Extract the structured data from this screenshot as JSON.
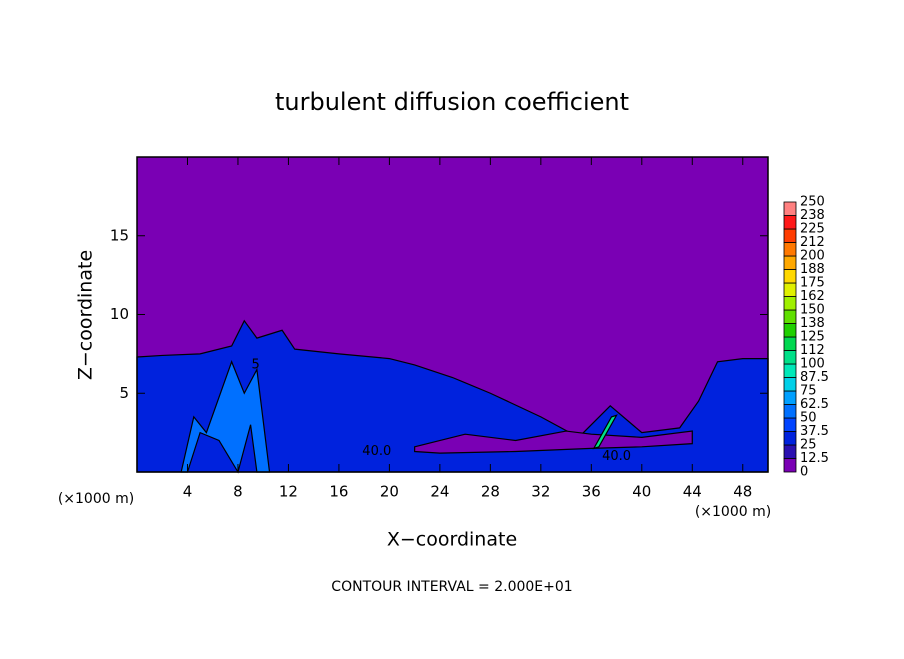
{
  "chart_data": {
    "type": "contour",
    "title": "turbulent diffusion coefficient",
    "x_label": "X−coordinate",
    "y_label": "Z−coordinate",
    "x_unit_left": "(×1000 m)",
    "x_unit_right": "(×1000 m)",
    "footer": "CONTOUR INTERVAL = 2.000E+01",
    "xlim": [
      0,
      50
    ],
    "ylim": [
      0,
      20
    ],
    "xticks": [
      4,
      8,
      12,
      16,
      20,
      24,
      28,
      32,
      36,
      40,
      44,
      48
    ],
    "yticks": [
      5,
      10,
      15
    ],
    "levels": [
      0,
      12.5,
      25,
      37.5,
      50,
      62.5,
      75,
      87.5,
      100,
      {
        "value": 112.5,
        "label": "112"
      },
      125,
      {
        "value": 137.5,
        "label": "138"
      },
      150,
      {
        "value": 162.5,
        "label": "162"
      },
      175,
      {
        "value": 187.5,
        "label": "188"
      },
      200,
      {
        "value": 212.5,
        "label": "212"
      },
      225,
      {
        "value": 237.5,
        "label": "238"
      },
      250
    ],
    "colors": [
      "#7a00b4",
      "#2a10b0",
      "#0022dd",
      "#0044ff",
      "#0070ff",
      "#00a0ff",
      "#00d0e8",
      "#00e8b8",
      "#00e088",
      "#00d850",
      "#20d000",
      "#60e000",
      "#a0f000",
      "#e0f000",
      "#ffd800",
      "#ffa800",
      "#ff7800",
      "#ff3c00",
      "#ff1818",
      "#ff8080"
    ],
    "regions": [
      {
        "value": 30,
        "x": [
          0,
          2,
          5,
          7.5,
          8.5,
          9.5,
          11.5,
          12.5,
          16,
          20,
          22,
          25,
          28,
          32,
          35,
          37.5,
          40,
          43,
          44.5,
          46,
          48,
          50,
          50,
          0
        ],
        "z": [
          7.3,
          7.4,
          7.5,
          8.0,
          9.6,
          8.5,
          9.0,
          7.8,
          7.5,
          7.2,
          6.8,
          6.0,
          5.0,
          3.5,
          2.2,
          4.2,
          2.5,
          2.8,
          4.5,
          7.0,
          7.2,
          7.2,
          0,
          0
        ]
      },
      {
        "value": 60,
        "x": [
          3.5,
          4.5,
          5.5,
          7.5,
          8.5,
          9.5,
          10.5,
          9.5,
          9.0,
          8.0,
          6.5,
          5.0,
          4.0
        ],
        "z": [
          0,
          3.5,
          2.5,
          7.0,
          5.0,
          6.5,
          0,
          0,
          3.0,
          0,
          2.0,
          2.5,
          0
        ]
      },
      {
        "value": 10,
        "x": [
          22,
          26,
          30,
          34,
          36,
          40,
          44,
          44,
          40,
          36,
          30,
          24,
          22
        ],
        "z": [
          1.6,
          2.4,
          2.0,
          2.6,
          2.4,
          2.2,
          2.6,
          1.8,
          1.6,
          1.5,
          1.3,
          1.2,
          1.3
        ]
      },
      {
        "value": 100,
        "x": [
          36.2,
          36.6,
          38.0,
          37.6
        ],
        "z": [
          1.5,
          1.6,
          3.6,
          3.5
        ]
      }
    ],
    "contour_labels": [
      {
        "value": 40,
        "label": "40.0",
        "x": 19.0,
        "z": 1.3
      },
      {
        "value": 40,
        "label": "40.0",
        "x": 38.0,
        "z": 1.0
      },
      {
        "value": 5,
        "label": "5",
        "x": 9.4,
        "z": 6.8
      }
    ]
  }
}
